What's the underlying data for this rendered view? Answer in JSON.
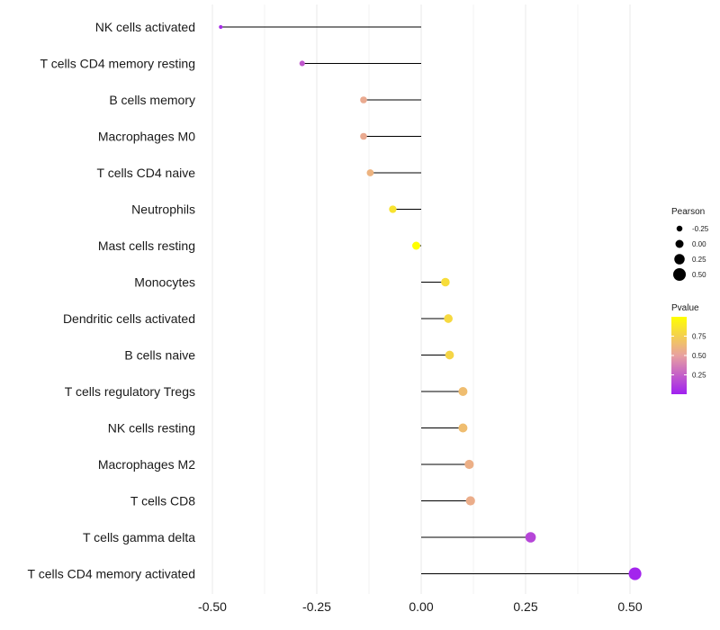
{
  "chart_data": {
    "type": "scatter",
    "subtype": "lollipop",
    "categories": [
      "NK cells activated",
      "T cells CD4 memory resting",
      "B cells memory",
      "Macrophages M0",
      "T cells CD4 naive",
      "Neutrophils",
      "Mast cells resting",
      "Monocytes",
      "Dendritic cells activated",
      "B cells naive",
      "T cells regulatory  Tregs ",
      "NK cells resting",
      "Macrophages M2",
      "T cells CD8",
      "T cells gamma delta",
      "T cells CD4 memory activated"
    ],
    "pearson": [
      -0.48,
      -0.285,
      -0.138,
      -0.138,
      -0.122,
      -0.068,
      -0.012,
      0.058,
      0.065,
      0.068,
      0.1,
      0.1,
      0.115,
      0.118,
      0.262,
      0.512
    ],
    "pvalue": [
      0.05,
      0.22,
      0.55,
      0.55,
      0.6,
      0.85,
      1.0,
      0.82,
      0.8,
      0.78,
      0.65,
      0.65,
      0.58,
      0.57,
      0.15,
      0.02
    ],
    "x_axis": {
      "min": -0.5,
      "max": 0.5,
      "ticks": [
        -0.5,
        -0.25,
        0.0,
        0.25,
        0.5
      ],
      "tick_labels": [
        "-0.50",
        "-0.25",
        "0.00",
        "0.25",
        "0.50"
      ]
    },
    "xlabel": "",
    "ylabel": "",
    "legend_size": {
      "title": "Pearson",
      "values": [
        -0.25,
        0.0,
        0.25,
        0.5
      ],
      "labels": [
        "-0.25",
        "0.00",
        "0.25",
        "0.50"
      ]
    },
    "legend_color": {
      "title": "Pvalue",
      "min": 0.0,
      "max": 1.0,
      "ticks": [
        0.75,
        0.5,
        0.25
      ],
      "tick_labels": [
        "0.75",
        "0.50",
        "0.25"
      ],
      "low_color": "#a020f0",
      "mid_color": "#e8a0a0",
      "high_color": "#ffff00"
    },
    "colors": {
      "stem": "#000000",
      "grid": "#ebebeb",
      "text": "#1a1a1a"
    },
    "grid": true,
    "legend_position": "right"
  }
}
